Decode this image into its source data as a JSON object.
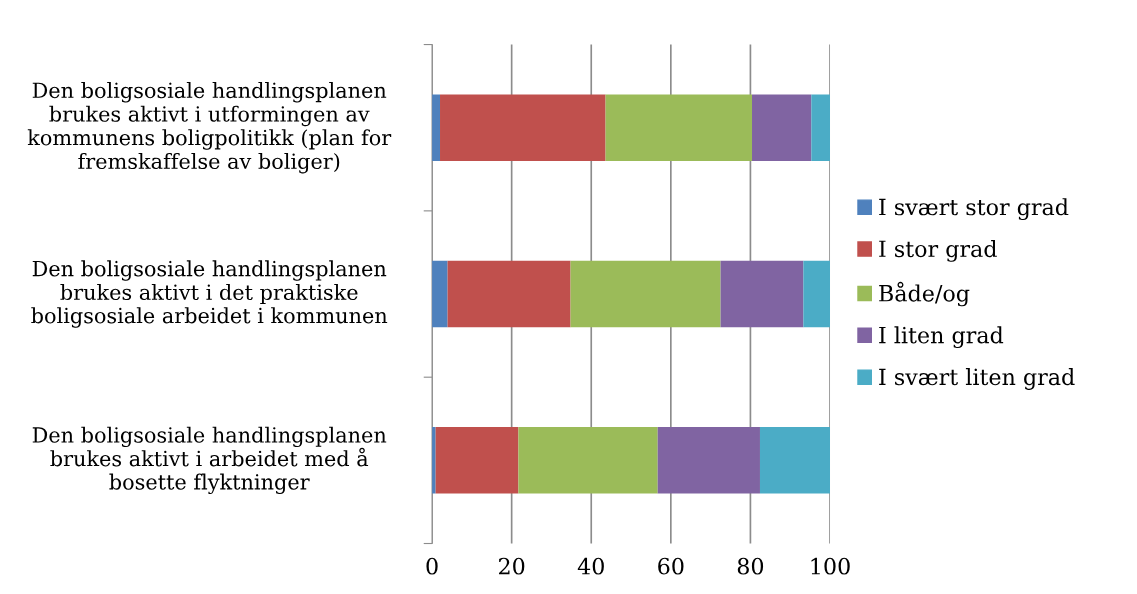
{
  "chart_data": {
    "type": "bar",
    "orientation": "horizontal",
    "stacked": true,
    "categories": [
      "Den boligsosiale handlingsplanen brukes aktivt i utformingen av kommunens boligpolitikk (plan for fremskaffelse av boliger)",
      "Den boligsosiale handlingsplanen brukes aktivt i det praktiske boligsosiale arbeidet i kommunen",
      "Den boligsosiale handlingsplanen brukes aktivt i arbeidet med å bosette flyktninger"
    ],
    "series": [
      {
        "name": "I svært stor grad",
        "color": "#4f81bd",
        "values": [
          2.0,
          3.9,
          0.9
        ]
      },
      {
        "name": "I stor grad",
        "color": "#c0504d",
        "values": [
          41.6,
          30.9,
          20.8
        ]
      },
      {
        "name": "Både/og",
        "color": "#9bbb59",
        "values": [
          36.8,
          37.7,
          35.0
        ]
      },
      {
        "name": "I liten grad",
        "color": "#8064a2",
        "values": [
          14.9,
          20.8,
          25.7
        ]
      },
      {
        "name": "I svært liten grad",
        "color": "#4bacc6",
        "values": [
          4.7,
          6.7,
          17.6
        ]
      }
    ],
    "xlim": [
      0,
      100
    ],
    "xticks": [
      0,
      20,
      40,
      60,
      80,
      100
    ],
    "grid": "x",
    "legend": "right"
  }
}
